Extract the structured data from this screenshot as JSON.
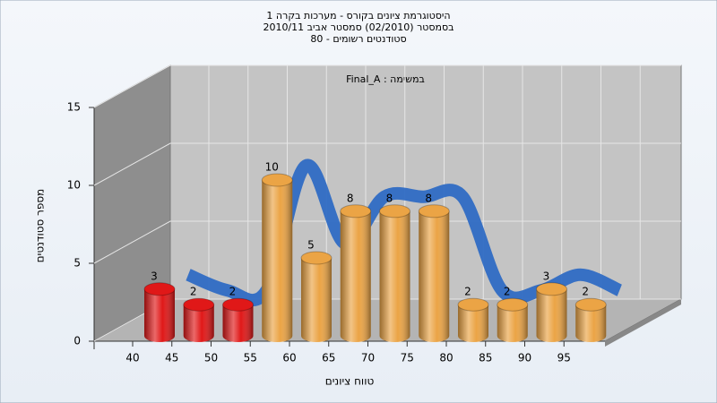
{
  "chart_data": {
    "type": "bar3d",
    "title": [
      "היסטוגרמת ציונים בקורס - מערכות בקרה 1",
      "בסמסטר (02/2010) סמסטר אביב 2010/11",
      "סטודנטים רשומים - 80"
    ],
    "annotation": "Final_A : במשימה",
    "x_label": "טווח ציונים",
    "y_label": "מספר סטודנטים",
    "categories": [
      "40",
      "45",
      "50",
      "55",
      "60",
      "65",
      "70",
      "75",
      "80",
      "85",
      "90",
      "95"
    ],
    "values": [
      3,
      2,
      2,
      10,
      5,
      8,
      8,
      8,
      2,
      2,
      3,
      2
    ],
    "colors": [
      "#e01818",
      "#e01818",
      "#e01818",
      "#eba445",
      "#eba445",
      "#eba445",
      "#eba445",
      "#eba445",
      "#eba445",
      "#eba445",
      "#eba445",
      "#eba445"
    ],
    "trend_color": "#2f6cc4",
    "ylim": [
      0,
      15
    ],
    "yticks": [
      0,
      5,
      10,
      15
    ],
    "grid": true
  }
}
